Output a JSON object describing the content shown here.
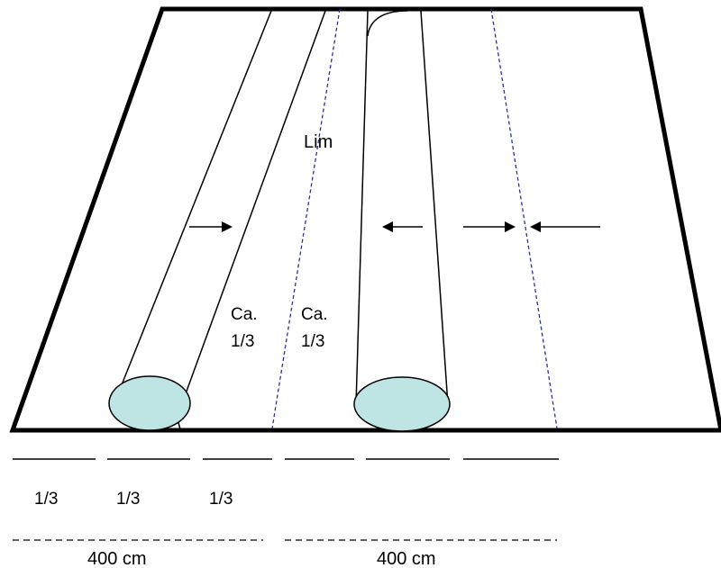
{
  "labels": {
    "glue": "Lim",
    "overlap_left": [
      "Ca.",
      "1/3"
    ],
    "overlap_right": [
      "Ca.",
      "1/3"
    ],
    "thirds": [
      "1/3",
      "1/3",
      "1/3"
    ],
    "width_left": "400 cm",
    "width_right": "400 cm"
  },
  "colors": {
    "outline": "#000000",
    "roll_fill": "#bfe4e4",
    "guide_line": "#2e2e9e",
    "background": "#ffffff"
  },
  "icons": [
    "arrow-right-icon",
    "arrow-left-icon"
  ]
}
